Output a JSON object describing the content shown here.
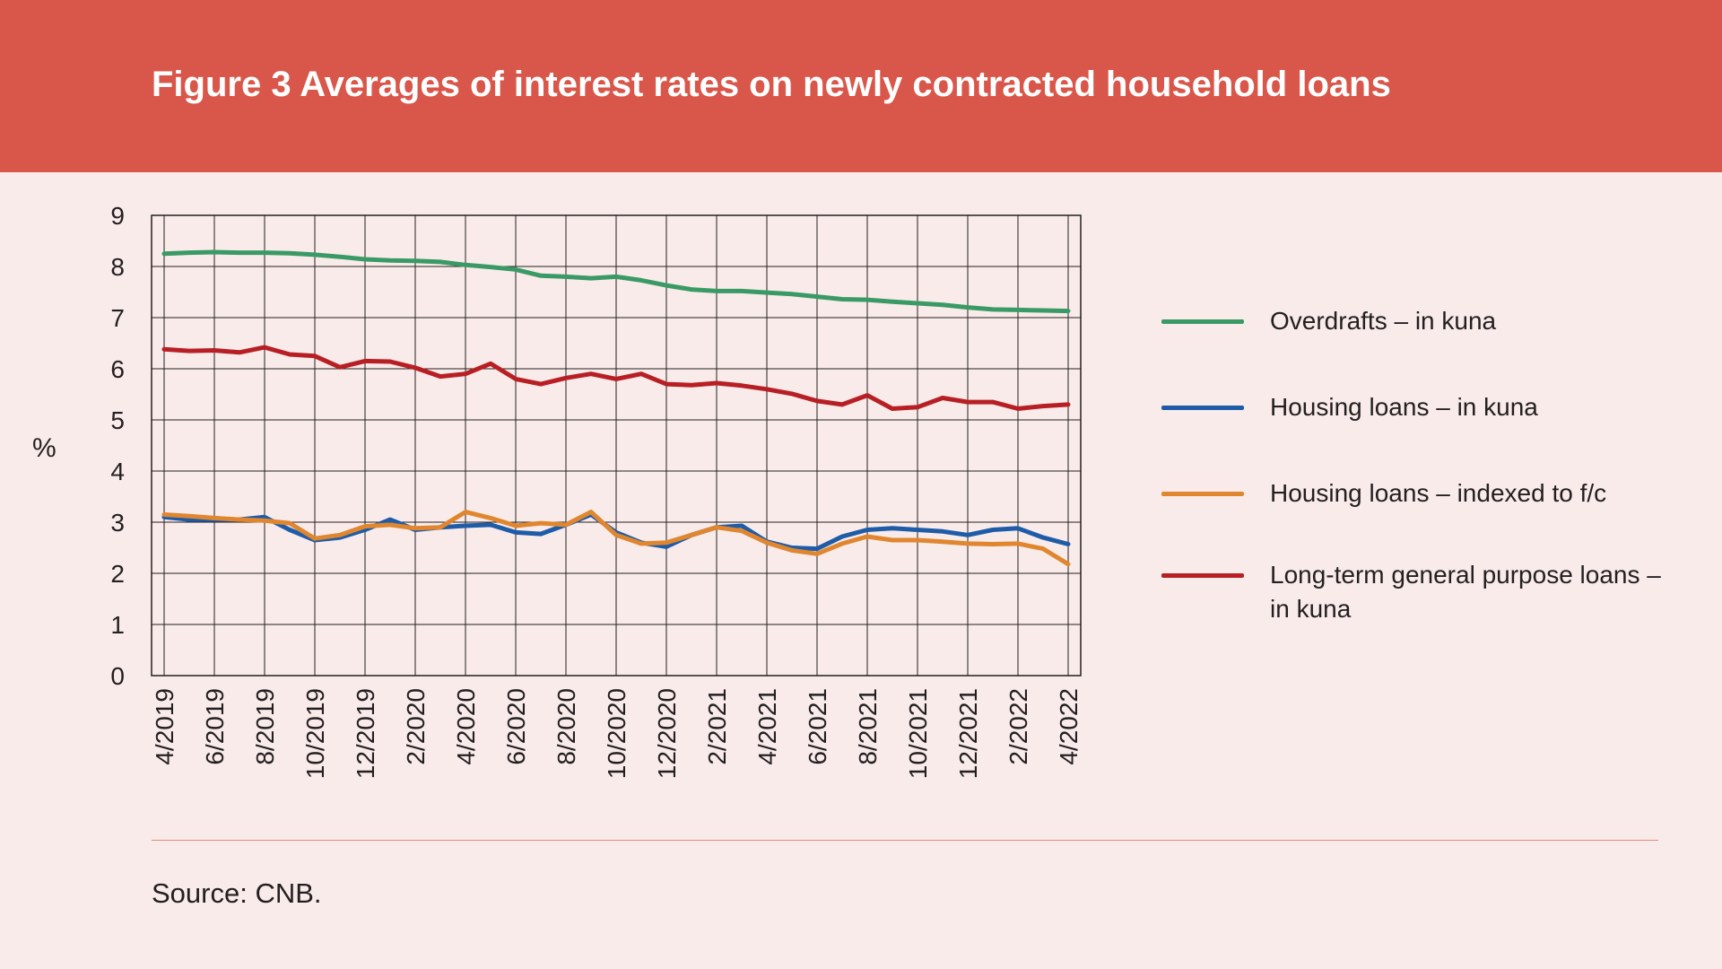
{
  "header": {
    "title": "Figure 3 Averages of interest rates on newly contracted household loans"
  },
  "chart_data": {
    "type": "line",
    "ylabel": "%",
    "xlabel": "",
    "ylim": [
      0,
      9
    ],
    "yticks": [
      "0",
      "1",
      "2",
      "3",
      "4",
      "5",
      "6",
      "7",
      "8",
      "9"
    ],
    "grid": true,
    "legend_position": "right",
    "x": [
      "4/2019",
      "5/2019",
      "6/2019",
      "7/2019",
      "8/2019",
      "9/2019",
      "10/2019",
      "11/2019",
      "12/2019",
      "1/2020",
      "2/2020",
      "3/2020",
      "4/2020",
      "5/2020",
      "6/2020",
      "7/2020",
      "8/2020",
      "9/2020",
      "10/2020",
      "11/2020",
      "12/2020",
      "1/2021",
      "2/2021",
      "3/2021",
      "4/2021",
      "5/2021",
      "6/2021",
      "7/2021",
      "8/2021",
      "9/2021",
      "10/2021",
      "11/2021",
      "12/2021",
      "1/2022",
      "2/2022",
      "3/2022",
      "4/2022"
    ],
    "xtick_labels": [
      "4/2019",
      "6/2019",
      "8/2019",
      "10/2019",
      "12/2019",
      "2/2020",
      "4/2020",
      "6/2020",
      "8/2020",
      "10/2020",
      "12/2020",
      "2/2021",
      "4/2021",
      "6/2021",
      "8/2021",
      "10/2021",
      "12/2021",
      "2/2022",
      "4/2022"
    ],
    "series": [
      {
        "name": "Overdrafts – in kuna",
        "color": "#3a9a65",
        "values": [
          8.25,
          8.27,
          8.28,
          8.27,
          8.27,
          8.26,
          8.23,
          8.19,
          8.14,
          8.12,
          8.11,
          8.09,
          8.03,
          7.99,
          7.94,
          7.82,
          7.8,
          7.77,
          7.8,
          7.73,
          7.63,
          7.55,
          7.52,
          7.52,
          7.49,
          7.46,
          7.41,
          7.36,
          7.35,
          7.31,
          7.28,
          7.25,
          7.2,
          7.16,
          7.15,
          7.14,
          7.13
        ]
      },
      {
        "name": "Housing loans – in kuna",
        "color": "#1f5ca8",
        "values": [
          3.1,
          3.05,
          3.05,
          3.05,
          3.1,
          2.85,
          2.65,
          2.7,
          2.85,
          3.05,
          2.85,
          2.9,
          2.93,
          2.95,
          2.8,
          2.77,
          2.95,
          3.15,
          2.8,
          2.6,
          2.52,
          2.75,
          2.9,
          2.93,
          2.62,
          2.5,
          2.48,
          2.72,
          2.85,
          2.88,
          2.85,
          2.82,
          2.75,
          2.85,
          2.88,
          2.7,
          2.57
        ]
      },
      {
        "name": "Housing loans – indexed to f/c",
        "color": "#e0862f",
        "values": [
          3.15,
          3.12,
          3.08,
          3.05,
          3.03,
          2.98,
          2.68,
          2.75,
          2.92,
          2.95,
          2.88,
          2.9,
          3.2,
          3.08,
          2.93,
          2.98,
          2.95,
          3.2,
          2.75,
          2.58,
          2.6,
          2.75,
          2.9,
          2.83,
          2.6,
          2.45,
          2.38,
          2.58,
          2.72,
          2.65,
          2.65,
          2.62,
          2.58,
          2.57,
          2.58,
          2.48,
          2.18
        ]
      },
      {
        "name": "Long-term general purpose loans – in kuna",
        "color": "#b81f24",
        "values": [
          6.38,
          6.35,
          6.36,
          6.32,
          6.42,
          6.28,
          6.25,
          6.03,
          6.15,
          6.14,
          6.02,
          5.85,
          5.9,
          6.1,
          5.8,
          5.7,
          5.82,
          5.9,
          5.8,
          5.9,
          5.7,
          5.68,
          5.72,
          5.67,
          5.6,
          5.51,
          5.37,
          5.3,
          5.48,
          5.22,
          5.25,
          5.43,
          5.35,
          5.35,
          5.22,
          5.27,
          5.3
        ]
      }
    ]
  },
  "source": {
    "text": "Source: CNB."
  }
}
